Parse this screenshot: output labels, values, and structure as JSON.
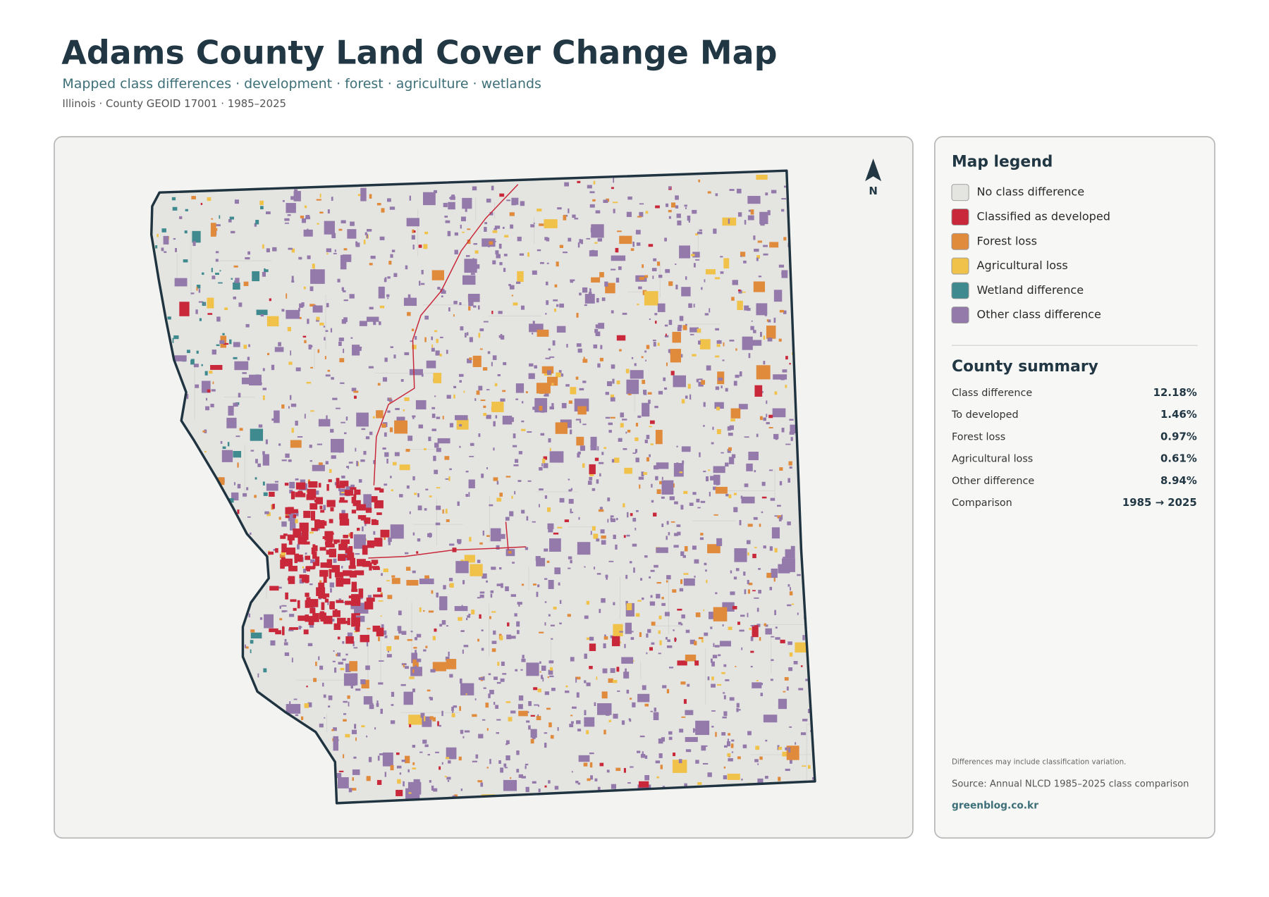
{
  "header": {
    "title": "Adams County Land Cover Change Map",
    "subtitle": "Mapped class differences · development · forest · agriculture · wetlands",
    "meta": "Illinois · County GEOID 17001 · 1985–2025"
  },
  "map": {
    "north_label": "N"
  },
  "legend": {
    "title": "Map legend",
    "items": [
      {
        "label": "No class difference",
        "color": "#e4e4e0"
      },
      {
        "label": "Classified as developed",
        "color": "#c8283a"
      },
      {
        "label": "Forest loss",
        "color": "#e08a3c"
      },
      {
        "label": "Agricultural loss",
        "color": "#f0c24a"
      },
      {
        "label": "Wetland difference",
        "color": "#3f8a8f"
      },
      {
        "label": "Other class difference",
        "color": "#9479ab"
      }
    ]
  },
  "summary": {
    "title": "County summary",
    "rows": [
      {
        "label": "Class difference",
        "value": "12.18%"
      },
      {
        "label": "To developed",
        "value": "1.46%"
      },
      {
        "label": "Forest loss",
        "value": "0.97%"
      },
      {
        "label": "Agricultural loss",
        "value": "0.61%"
      },
      {
        "label": "Other difference",
        "value": "8.94%"
      },
      {
        "label": "Comparison",
        "value": "1985 → 2025"
      }
    ]
  },
  "footer": {
    "note": "Differences may include classification variation.",
    "source": "Source: Annual NLCD 1985–2025 class comparison",
    "credit": "greenblog.co.kr"
  }
}
